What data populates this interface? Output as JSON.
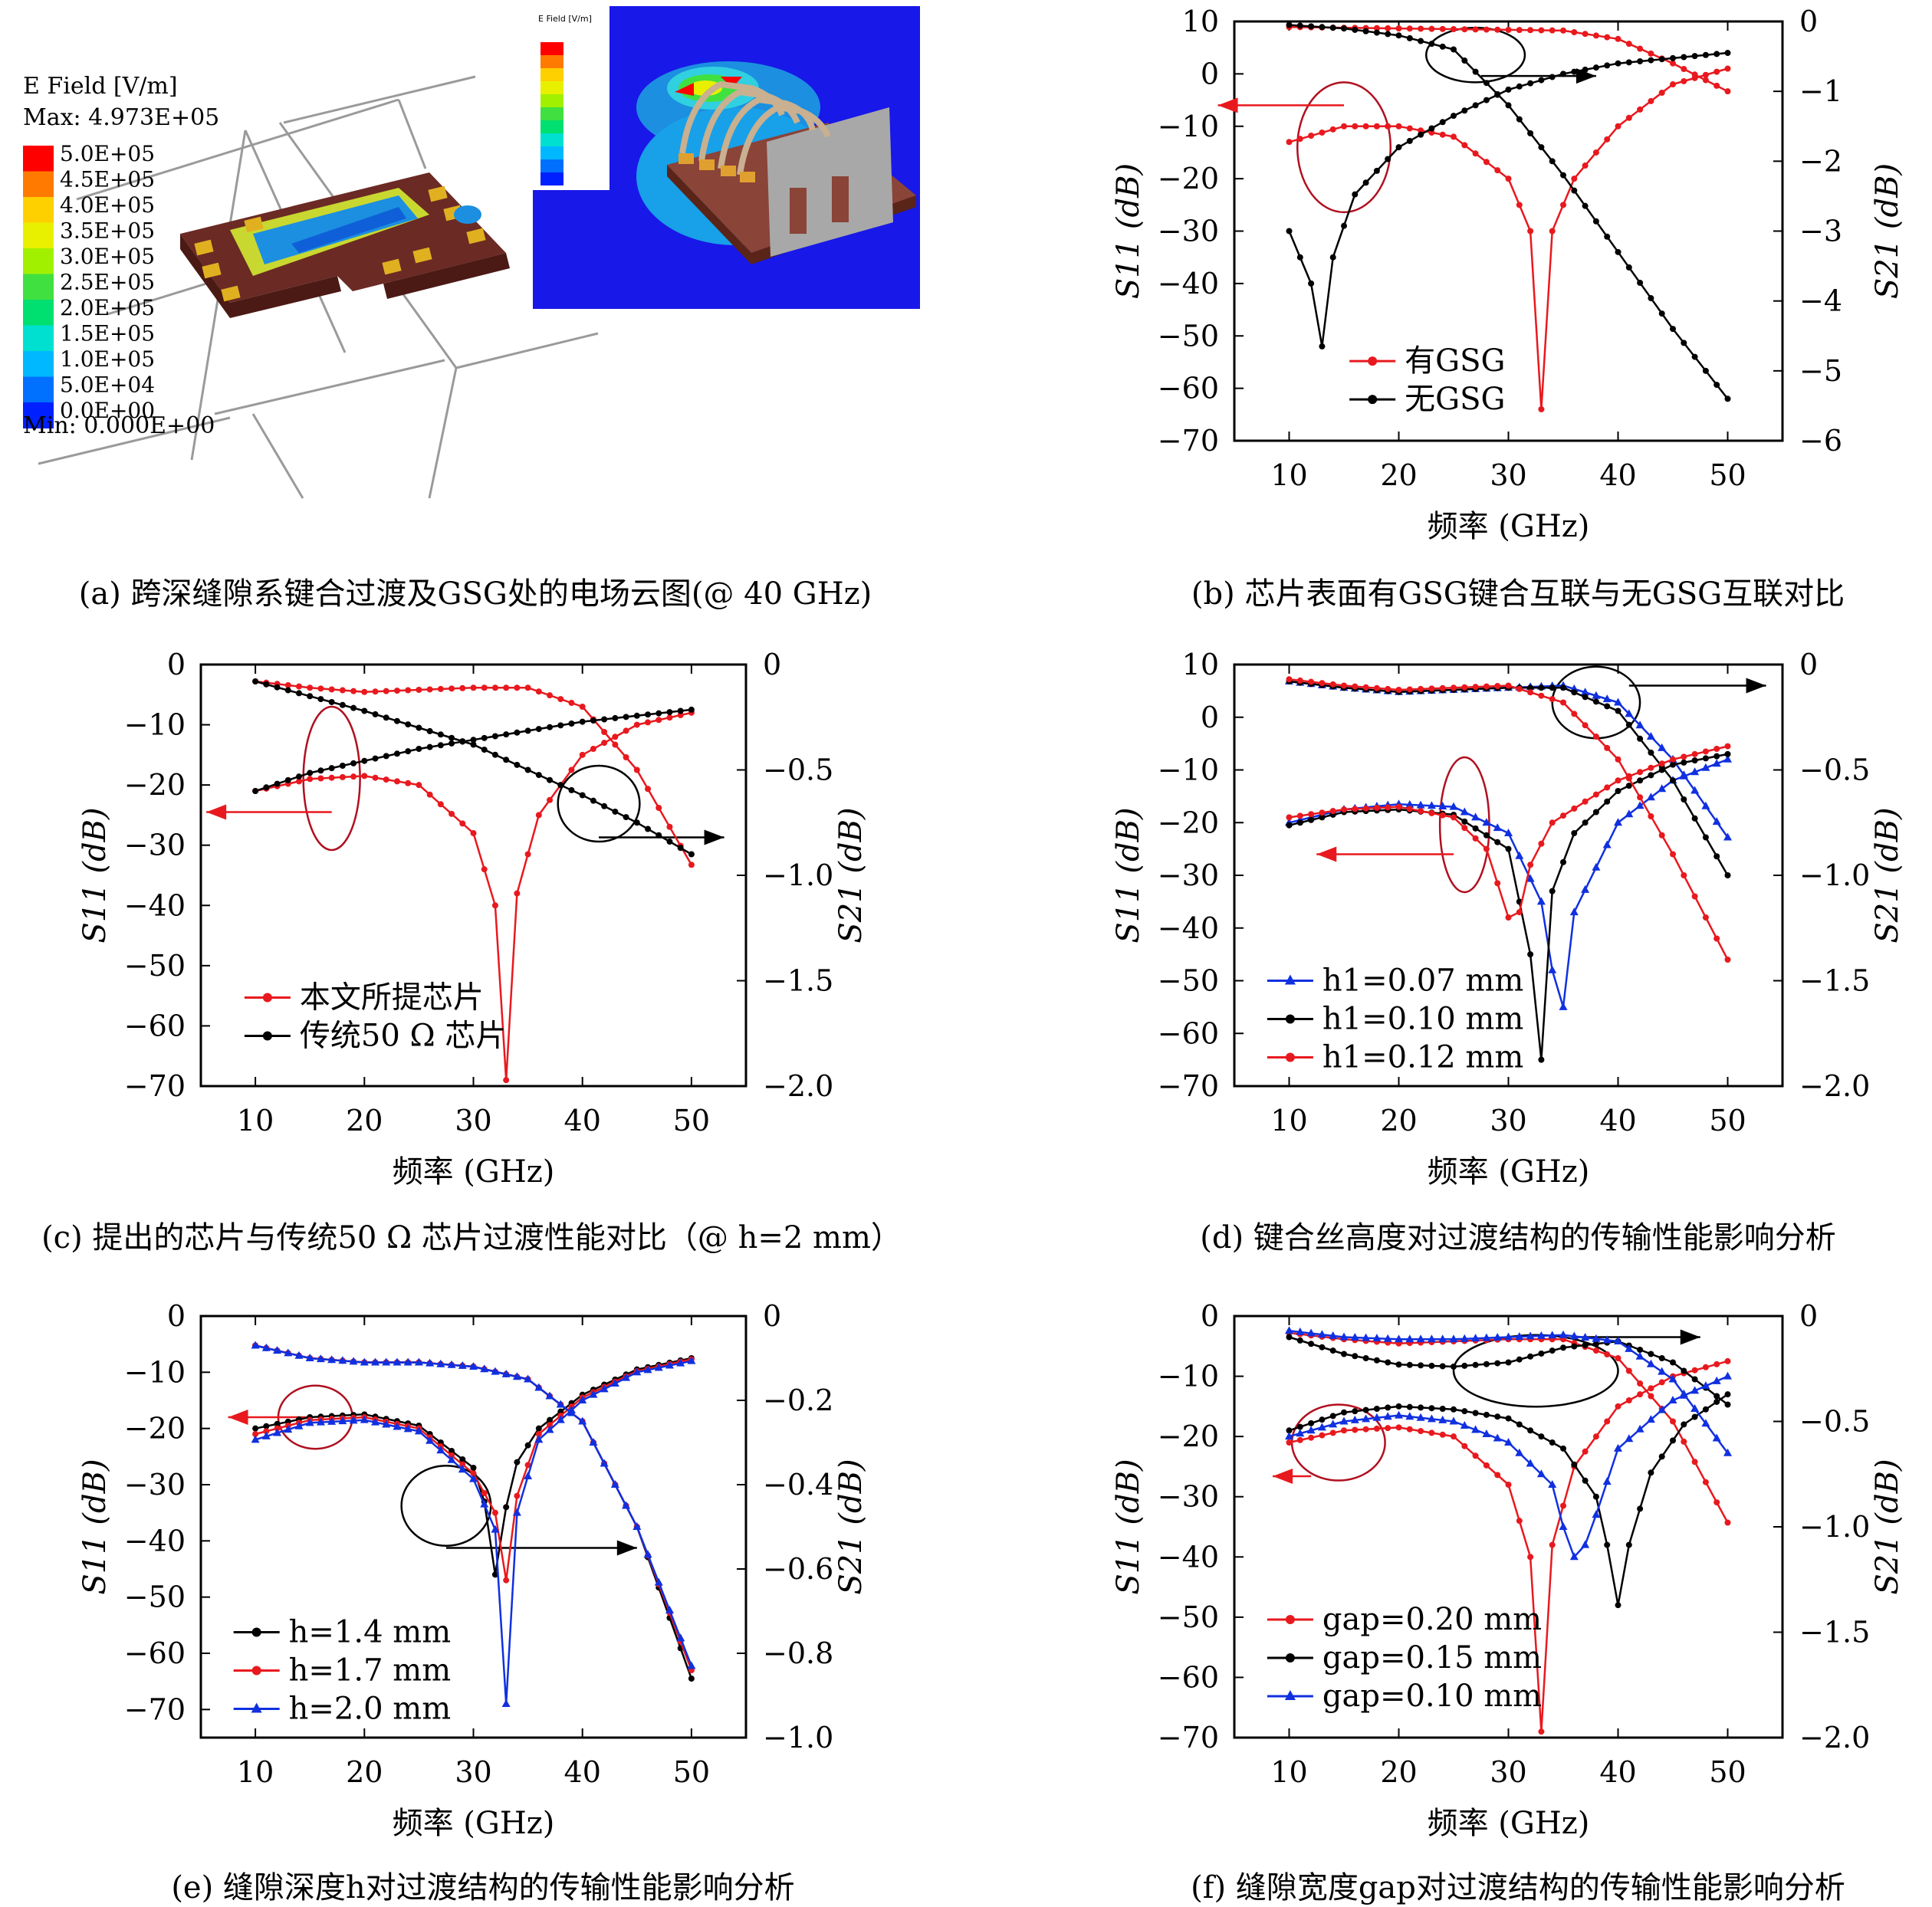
{
  "captions": {
    "a": "(a) 跨深缝隙系键合过渡及GSG处的电场云图(@ 40 GHz)",
    "b": "(b) 芯片表面有GSG键合互联与无GSG互联对比",
    "c": "(c) 提出的芯片与传统50 Ω 芯片过渡性能对比（@ h=2 mm）",
    "d": "(d) 键合丝高度对过渡结构的传输性能影响分析",
    "e": "(e) 缝隙深度h对过渡结构的传输性能影响分析",
    "f": "(f) 缝隙宽度gap对过渡结构的传输性能影响分析"
  },
  "field_plot": {
    "title": "E Field [V/m]",
    "max": "Max: 4.973E+05",
    "min": "Min: 0.000E+00",
    "scale": [
      "5.0E+05",
      "4.5E+05",
      "4.0E+05",
      "3.5E+05",
      "3.0E+05",
      "2.5E+05",
      "2.0E+05",
      "1.5E+05",
      "1.0E+05",
      "5.0E+04",
      "0.0E+00"
    ],
    "scale_colors": [
      "#ff0000",
      "#ff7a00",
      "#ffd000",
      "#e8f000",
      "#a0f000",
      "#40e040",
      "#00e070",
      "#00e0d0",
      "#00b8ff",
      "#0070ff",
      "#0020ff"
    ],
    "inset_title": "E Field [V/m]"
  },
  "colors": {
    "red": "#e8191e",
    "black": "#000000",
    "blue": "#1030e0",
    "ellipse_red": "#b01020"
  },
  "chart_data": [
    {
      "id": "b",
      "type": "line",
      "xlabel": "频率 (GHz)",
      "ylabel": "S11 (dB)",
      "y2label": "S21 (dB)",
      "xlim": [
        5,
        55
      ],
      "ylim": [
        -70,
        10
      ],
      "y2lim": [
        -6,
        0
      ],
      "xticks": [
        10,
        20,
        30,
        40,
        50
      ],
      "yticks": [
        10,
        0,
        -10,
        -20,
        -30,
        -40,
        -50,
        -60,
        -70
      ],
      "y2ticks": [
        0,
        -1,
        -2,
        -3,
        -4,
        -5,
        -6
      ],
      "series": [
        {
          "name": "有GSG",
          "color": "red",
          "marker": "dot",
          "axis": "left",
          "x": [
            10,
            15,
            20,
            25,
            30,
            32,
            33,
            34,
            36,
            40,
            45,
            50
          ],
          "y": [
            -13,
            -10,
            -10,
            -12,
            -20,
            -30,
            -64,
            -30,
            -20,
            -10,
            -2,
            1
          ]
        },
        {
          "name": "",
          "color": "red",
          "marker": "dot",
          "axis": "right",
          "x": [
            10,
            20,
            30,
            35,
            40,
            45,
            50
          ],
          "y": [
            -0.08,
            -0.1,
            -0.12,
            -0.13,
            -0.25,
            -0.6,
            -1.0
          ]
        },
        {
          "name": "无GSG",
          "color": "black",
          "marker": "dot",
          "axis": "left",
          "x": [
            10,
            12,
            13,
            14,
            16,
            20,
            25,
            30,
            35,
            40,
            45,
            50
          ],
          "y": [
            -30,
            -40,
            -52,
            -35,
            -23,
            -14,
            -8,
            -3,
            0,
            2,
            3,
            4
          ]
        },
        {
          "name": "",
          "color": "black",
          "marker": "dot",
          "axis": "right",
          "x": [
            10,
            15,
            20,
            25,
            30,
            35,
            40,
            45,
            50
          ],
          "y": [
            -0.05,
            -0.1,
            -0.2,
            -0.4,
            -1.2,
            -2.2,
            -3.3,
            -4.4,
            -5.4
          ]
        }
      ]
    },
    {
      "id": "c",
      "type": "line",
      "xlabel": "频率 (GHz)",
      "ylabel": "S11 (dB)",
      "y2label": "S21 (dB)",
      "xlim": [
        5,
        55
      ],
      "ylim": [
        -70,
        0
      ],
      "y2lim": [
        -2.0,
        0
      ],
      "xticks": [
        10,
        20,
        30,
        40,
        50
      ],
      "yticks": [
        0,
        -10,
        -20,
        -30,
        -40,
        -50,
        -60,
        -70
      ],
      "y2ticks": [
        0,
        -0.5,
        -1.0,
        -1.5,
        -2.0
      ],
      "series": [
        {
          "name": "本文所提芯片",
          "color": "red",
          "marker": "dot",
          "axis": "left",
          "x": [
            10,
            15,
            20,
            25,
            30,
            32,
            33,
            34,
            36,
            40,
            45,
            50
          ],
          "y": [
            -21,
            -19,
            -18.5,
            -20,
            -28,
            -40,
            -69,
            -38,
            -25,
            -15,
            -10,
            -8
          ]
        },
        {
          "name": "",
          "color": "red",
          "marker": "dot",
          "axis": "right",
          "x": [
            10,
            15,
            20,
            25,
            30,
            35,
            40,
            45,
            50
          ],
          "y": [
            -0.08,
            -0.11,
            -0.13,
            -0.12,
            -0.11,
            -0.11,
            -0.2,
            -0.5,
            -0.95
          ]
        },
        {
          "name": "传统50 Ω 芯片",
          "color": "black",
          "marker": "dot",
          "axis": "left",
          "x": [
            10,
            15,
            20,
            25,
            30,
            35,
            40,
            45,
            50
          ],
          "y": [
            -21,
            -18,
            -16,
            -14,
            -12.5,
            -11,
            -9.5,
            -8.5,
            -7.5
          ]
        },
        {
          "name": "",
          "color": "black",
          "marker": "dot",
          "axis": "right",
          "x": [
            10,
            15,
            20,
            25,
            30,
            35,
            40,
            45,
            50
          ],
          "y": [
            -0.08,
            -0.15,
            -0.22,
            -0.3,
            -0.38,
            -0.5,
            -0.62,
            -0.75,
            -0.9
          ]
        }
      ]
    },
    {
      "id": "d",
      "type": "line",
      "xlabel": "频率 (GHz)",
      "ylabel": "S11 (dB)",
      "y2label": "S21 (dB)",
      "xlim": [
        5,
        55
      ],
      "ylim": [
        -70,
        10
      ],
      "y2lim": [
        -2.0,
        0
      ],
      "xticks": [
        10,
        20,
        30,
        40,
        50
      ],
      "yticks": [
        10,
        0,
        -10,
        -20,
        -30,
        -40,
        -50,
        -60,
        -70
      ],
      "y2ticks": [
        0,
        -0.5,
        -1.0,
        -1.5,
        -2.0
      ],
      "series": [
        {
          "name": "h1=0.07 mm",
          "color": "blue",
          "marker": "triangle",
          "axis": "left",
          "x": [
            10,
            15,
            20,
            25,
            30,
            33,
            34,
            35,
            36,
            40,
            45,
            50
          ],
          "y": [
            -20,
            -17.5,
            -16.5,
            -17,
            -22,
            -35,
            -48,
            -55,
            -37,
            -20,
            -12,
            -8
          ]
        },
        {
          "name": "",
          "color": "blue",
          "marker": "triangle",
          "axis": "right",
          "x": [
            10,
            15,
            20,
            25,
            30,
            35,
            40,
            45,
            50
          ],
          "y": [
            -0.08,
            -0.11,
            -0.13,
            -0.12,
            -0.11,
            -0.1,
            -0.18,
            -0.45,
            -0.82
          ]
        },
        {
          "name": "h1=0.10 mm",
          "color": "black",
          "marker": "dot",
          "axis": "left",
          "x": [
            10,
            15,
            20,
            25,
            30,
            32,
            33,
            34,
            36,
            40,
            45,
            50
          ],
          "y": [
            -20.5,
            -18,
            -17.5,
            -18.5,
            -25,
            -45,
            -65,
            -33,
            -22,
            -14,
            -9,
            -7
          ]
        },
        {
          "name": "",
          "color": "black",
          "marker": "dot",
          "axis": "right",
          "x": [
            10,
            15,
            20,
            25,
            30,
            35,
            40,
            45,
            50
          ],
          "y": [
            -0.08,
            -0.11,
            -0.13,
            -0.12,
            -0.11,
            -0.11,
            -0.22,
            -0.55,
            -1.0
          ]
        },
        {
          "name": "h1=0.12 mm",
          "color": "red",
          "marker": "dot",
          "axis": "left",
          "x": [
            10,
            15,
            20,
            25,
            28,
            30,
            31,
            32,
            34,
            40,
            45,
            50
          ],
          "y": [
            -19,
            -17.5,
            -17,
            -19,
            -25,
            -38,
            -37,
            -28,
            -20,
            -12,
            -8,
            -5.5
          ]
        },
        {
          "name": "",
          "color": "red",
          "marker": "dot",
          "axis": "right",
          "x": [
            10,
            15,
            20,
            25,
            30,
            35,
            40,
            45,
            50
          ],
          "y": [
            -0.07,
            -0.1,
            -0.12,
            -0.11,
            -0.1,
            -0.18,
            -0.45,
            -0.9,
            -1.4
          ]
        }
      ]
    },
    {
      "id": "e",
      "type": "line",
      "xlabel": "频率 (GHz)",
      "ylabel": "S11 (dB)",
      "y2label": "S21 (dB)",
      "xlim": [
        5,
        55
      ],
      "ylim": [
        -75,
        0
      ],
      "y2lim": [
        -1.0,
        0
      ],
      "xticks": [
        10,
        20,
        30,
        40,
        50
      ],
      "yticks": [
        0,
        -10,
        -20,
        -30,
        -40,
        -50,
        -60,
        -70
      ],
      "y2ticks": [
        0,
        -0.2,
        -0.4,
        -0.6,
        -0.8,
        -1.0
      ],
      "series": [
        {
          "name": "h=1.4 mm",
          "color": "black",
          "marker": "dot",
          "axis": "left",
          "x": [
            10,
            15,
            20,
            25,
            30,
            31,
            32,
            33,
            34,
            36,
            40,
            45,
            50
          ],
          "y": [
            -20,
            -18,
            -17.5,
            -19.5,
            -27,
            -33,
            -46,
            -34,
            -26,
            -20,
            -14,
            -9.5,
            -7.5
          ]
        },
        {
          "name": "",
          "color": "black",
          "marker": "dot",
          "axis": "right",
          "x": [
            10,
            15,
            20,
            25,
            30,
            35,
            40,
            45,
            50
          ],
          "y": [
            -0.07,
            -0.1,
            -0.11,
            -0.11,
            -0.12,
            -0.15,
            -0.25,
            -0.5,
            -0.86
          ]
        },
        {
          "name": "h=1.7 mm",
          "color": "red",
          "marker": "dot",
          "axis": "left",
          "x": [
            10,
            15,
            20,
            25,
            30,
            32,
            33,
            34,
            36,
            40,
            45,
            50
          ],
          "y": [
            -21,
            -18.5,
            -18,
            -20,
            -28,
            -35,
            -47,
            -32,
            -21,
            -14.5,
            -9.8,
            -7.7
          ]
        },
        {
          "name": "",
          "color": "red",
          "marker": "dot",
          "axis": "right",
          "x": [
            10,
            15,
            20,
            25,
            30,
            35,
            40,
            45,
            50
          ],
          "y": [
            -0.07,
            -0.1,
            -0.11,
            -0.11,
            -0.12,
            -0.15,
            -0.25,
            -0.5,
            -0.84
          ]
        },
        {
          "name": "h=2.0 mm",
          "color": "blue",
          "marker": "triangle",
          "axis": "left",
          "x": [
            10,
            15,
            20,
            25,
            30,
            32,
            33,
            34,
            36,
            40,
            45,
            50
          ],
          "y": [
            -22,
            -19,
            -18.5,
            -20.5,
            -29,
            -38,
            -69,
            -35,
            -22,
            -15,
            -10,
            -8
          ]
        },
        {
          "name": "",
          "color": "blue",
          "marker": "triangle",
          "axis": "right",
          "x": [
            10,
            15,
            20,
            25,
            30,
            35,
            40,
            45,
            50
          ],
          "y": [
            -0.07,
            -0.1,
            -0.11,
            -0.11,
            -0.12,
            -0.15,
            -0.25,
            -0.5,
            -0.83
          ]
        }
      ]
    },
    {
      "id": "f",
      "type": "line",
      "xlabel": "频率 (GHz)",
      "ylabel": "S11 (dB)",
      "y2label": "S21 (dB)",
      "xlim": [
        5,
        55
      ],
      "ylim": [
        -70,
        0
      ],
      "y2lim": [
        -2.0,
        0
      ],
      "xticks": [
        10,
        20,
        30,
        40,
        50
      ],
      "yticks": [
        0,
        -10,
        -20,
        -30,
        -40,
        -50,
        -60,
        -70
      ],
      "y2ticks": [
        0,
        -0.5,
        -1.0,
        -1.5,
        -2.0
      ],
      "series": [
        {
          "name": "gap=0.20 mm",
          "color": "red",
          "marker": "dot",
          "axis": "left",
          "x": [
            10,
            15,
            20,
            25,
            30,
            32,
            33,
            34,
            36,
            40,
            45,
            50
          ],
          "y": [
            -21,
            -19,
            -18.5,
            -20,
            -28,
            -40,
            -69,
            -38,
            -25,
            -15,
            -10,
            -7.5
          ]
        },
        {
          "name": "",
          "color": "red",
          "marker": "dot",
          "axis": "right",
          "x": [
            10,
            15,
            20,
            25,
            30,
            35,
            40,
            45,
            50
          ],
          "y": [
            -0.08,
            -0.11,
            -0.13,
            -0.12,
            -0.11,
            -0.11,
            -0.2,
            -0.5,
            -0.98
          ]
        },
        {
          "name": "gap=0.15 mm",
          "color": "black",
          "marker": "dot",
          "axis": "left",
          "x": [
            10,
            15,
            20,
            25,
            30,
            35,
            38,
            39,
            40,
            41,
            43,
            46,
            50
          ],
          "y": [
            -19,
            -16,
            -15,
            -15.5,
            -17,
            -22,
            -30,
            -38,
            -48,
            -38,
            -26,
            -18,
            -13
          ]
        },
        {
          "name": "",
          "color": "black",
          "marker": "dot",
          "axis": "right",
          "x": [
            10,
            15,
            20,
            25,
            30,
            35,
            40,
            45,
            50
          ],
          "y": [
            -0.1,
            -0.18,
            -0.23,
            -0.24,
            -0.22,
            -0.15,
            -0.12,
            -0.22,
            -0.42
          ]
        },
        {
          "name": "gap=0.10 mm",
          "color": "blue",
          "marker": "triangle",
          "axis": "left",
          "x": [
            10,
            15,
            20,
            25,
            30,
            34,
            35,
            36,
            37,
            38,
            40,
            45,
            50
          ],
          "y": [
            -20,
            -17.5,
            -16.5,
            -17.5,
            -21,
            -28,
            -35,
            -40,
            -38,
            -33,
            -22,
            -14,
            -10
          ]
        },
        {
          "name": "",
          "color": "blue",
          "marker": "triangle",
          "axis": "right",
          "x": [
            10,
            15,
            20,
            25,
            30,
            35,
            40,
            45,
            50
          ],
          "y": [
            -0.07,
            -0.1,
            -0.11,
            -0.11,
            -0.1,
            -0.09,
            -0.12,
            -0.3,
            -0.65
          ]
        }
      ]
    }
  ]
}
